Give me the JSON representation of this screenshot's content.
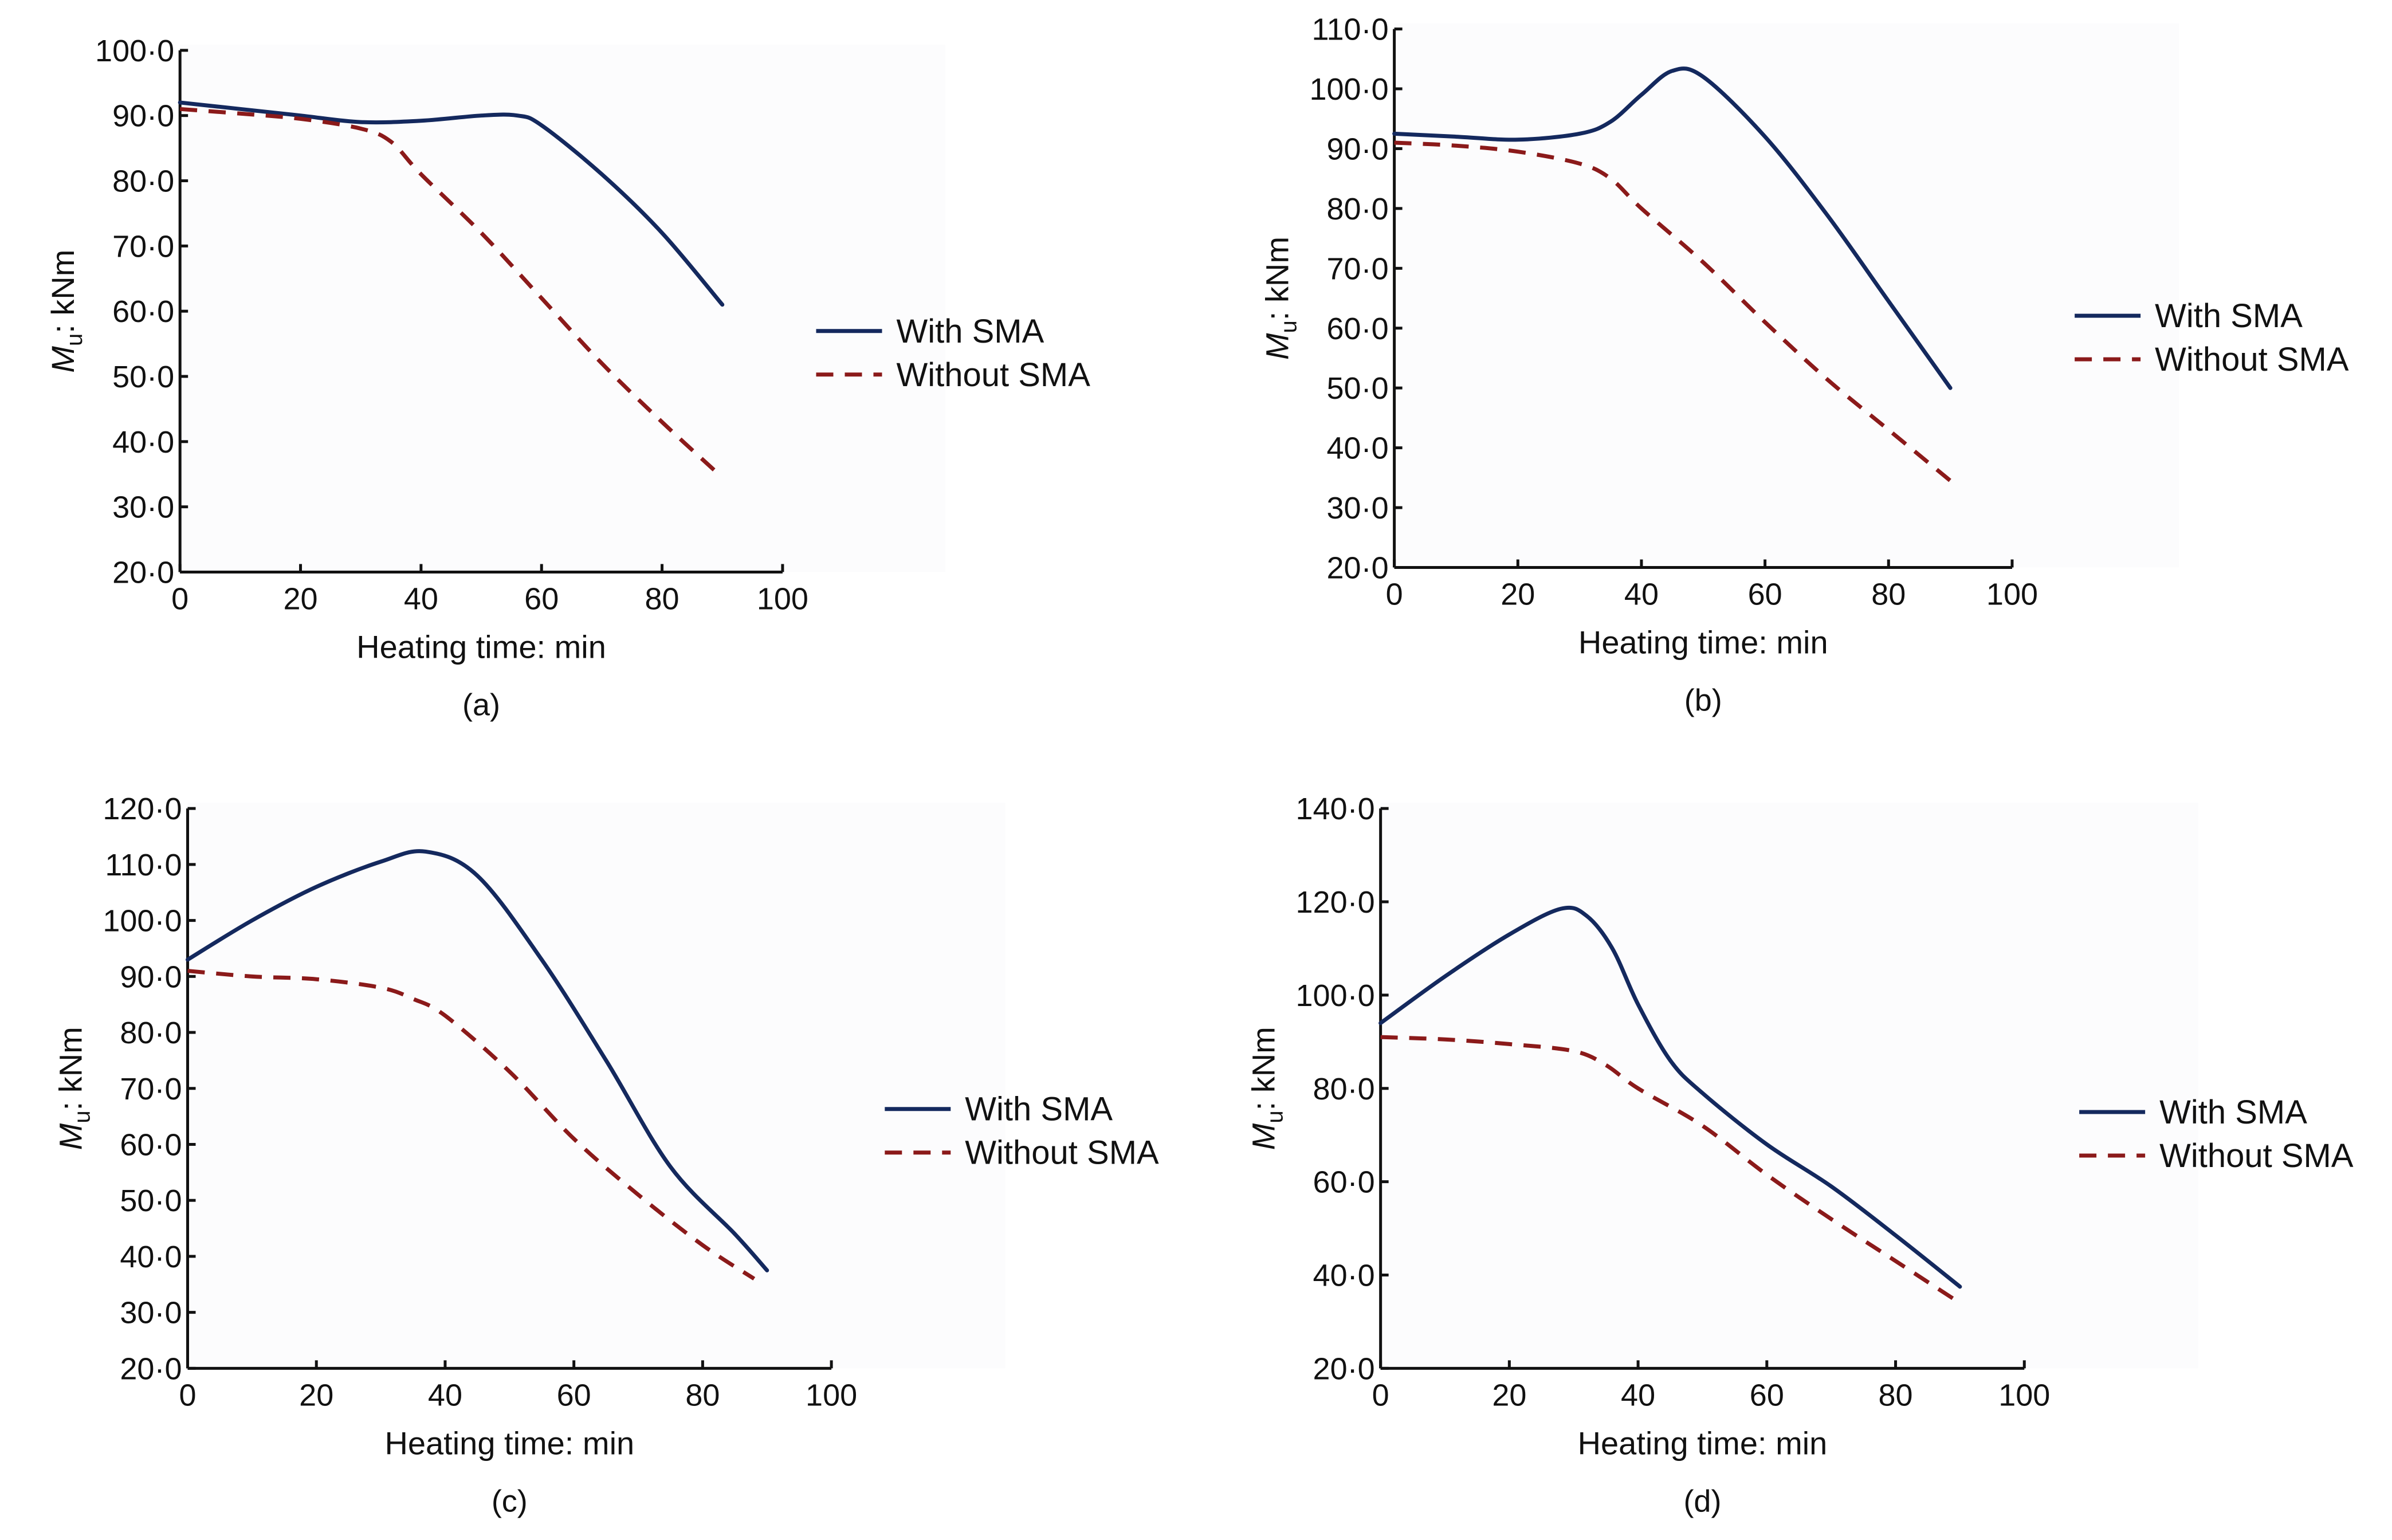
{
  "colors": {
    "with_sma": "#14295e",
    "without_sma": "#8b1a1a",
    "axis": "#111111"
  },
  "chart_data": [
    {
      "type": "line",
      "caption": "(a)",
      "xlabel": "Heating time: min",
      "ylabel": {
        "var": "M",
        "sub": "u",
        "unit": ": kNm"
      },
      "xlim": [
        0,
        100
      ],
      "ylim": [
        20,
        100
      ],
      "xticks": [
        "0",
        "20",
        "40",
        "60",
        "80",
        "100"
      ],
      "yticks": [
        "20·0",
        "30·0",
        "40·0",
        "50·0",
        "60·0",
        "70·0",
        "80·0",
        "90·0",
        "100·0"
      ],
      "legend": {
        "placement": "right",
        "entries": [
          "With SMA",
          "Without SMA"
        ]
      },
      "series": [
        {
          "name": "With SMA",
          "style": "solid",
          "x": [
            0,
            10,
            20,
            30,
            40,
            50,
            56,
            60,
            70,
            80,
            90
          ],
          "y": [
            92,
            91,
            90,
            89,
            89.2,
            90,
            90,
            88.5,
            81,
            72,
            61
          ]
        },
        {
          "name": "Without SMA",
          "style": "dashed",
          "x": [
            0,
            10,
            20,
            30,
            35,
            40,
            50,
            60,
            70,
            80,
            90
          ],
          "y": [
            91,
            90.3,
            89.5,
            88,
            86,
            81,
            72,
            62,
            52,
            43,
            34.5
          ]
        }
      ]
    },
    {
      "type": "line",
      "caption": "(b)",
      "xlabel": "Heating time: min",
      "ylabel": {
        "var": "M",
        "sub": "u",
        "unit": ": kNm"
      },
      "xlim": [
        0,
        100
      ],
      "ylim": [
        20,
        110
      ],
      "xticks": [
        "0",
        "20",
        "40",
        "60",
        "80",
        "100"
      ],
      "yticks": [
        "20·0",
        "30·0",
        "40·0",
        "50·0",
        "60·0",
        "70·0",
        "80·0",
        "90·0",
        "100·0",
        "110·0"
      ],
      "legend": {
        "placement": "right",
        "entries": [
          "With SMA",
          "Without SMA"
        ]
      },
      "series": [
        {
          "name": "With SMA",
          "style": "solid",
          "x": [
            0,
            10,
            20,
            30,
            35,
            40,
            45,
            50,
            60,
            70,
            80,
            90
          ],
          "y": [
            92.5,
            92,
            91.5,
            92.5,
            94.5,
            99,
            103,
            102,
            92,
            79,
            64.5,
            50
          ]
        },
        {
          "name": "Without SMA",
          "style": "dashed",
          "x": [
            0,
            10,
            20,
            30,
            35,
            40,
            50,
            60,
            70,
            80,
            90
          ],
          "y": [
            91,
            90.5,
            89.5,
            87.5,
            85,
            80,
            71,
            61,
            51.5,
            43,
            34.5
          ]
        }
      ]
    },
    {
      "type": "line",
      "caption": "(c)",
      "xlabel": "Heating time: min",
      "ylabel": {
        "var": "M",
        "sub": "u",
        "unit": ": kNm"
      },
      "xlim": [
        0,
        100
      ],
      "ylim": [
        20,
        120
      ],
      "xticks": [
        "0",
        "20",
        "40",
        "60",
        "80",
        "100"
      ],
      "yticks": [
        "20·0",
        "30·0",
        "40·0",
        "50·0",
        "60·0",
        "70·0",
        "80·0",
        "90·0",
        "100·0",
        "110·0",
        "120·0"
      ],
      "legend": {
        "placement": "right",
        "entries": [
          "With SMA",
          "Without SMA"
        ]
      },
      "series": [
        {
          "name": "With SMA",
          "style": "solid",
          "x": [
            0,
            10,
            20,
            30,
            37,
            45,
            55,
            65,
            75,
            85,
            90
          ],
          "y": [
            93,
            100,
            106,
            110.5,
            112.3,
            108,
            93,
            75,
            56,
            44,
            37.5
          ]
        },
        {
          "name": "Without SMA",
          "style": "dashed",
          "x": [
            0,
            10,
            20,
            30,
            35,
            40,
            50,
            60,
            70,
            80,
            88
          ],
          "y": [
            91,
            90,
            89.5,
            88,
            86,
            83,
            73,
            61,
            51,
            42,
            36
          ]
        }
      ]
    },
    {
      "type": "line",
      "caption": "(d)",
      "xlabel": "Heating time: min",
      "ylabel": {
        "var": "M",
        "sub": "u",
        "unit": ": kNm"
      },
      "xlim": [
        0,
        100
      ],
      "ylim": [
        20,
        140
      ],
      "xticks": [
        "0",
        "20",
        "40",
        "60",
        "80",
        "100"
      ],
      "yticks": [
        "20·0",
        "40·0",
        "60·0",
        "80·0",
        "100·0",
        "120·0",
        "140·0"
      ],
      "legend": {
        "placement": "right",
        "entries": [
          "With SMA",
          "Without SMA"
        ]
      },
      "series": [
        {
          "name": "With SMA",
          "style": "solid",
          "x": [
            0,
            10,
            20,
            28,
            32,
            36,
            40,
            45,
            50,
            60,
            70,
            80,
            90
          ],
          "y": [
            94,
            104,
            113,
            118.5,
            117,
            110,
            98,
            86,
            79,
            68,
            59,
            48.5,
            37.5
          ]
        },
        {
          "name": "Without SMA",
          "style": "dashed",
          "x": [
            0,
            10,
            20,
            30,
            35,
            40,
            50,
            60,
            70,
            80,
            90
          ],
          "y": [
            91,
            90.5,
            89.5,
            88,
            85,
            80,
            72,
            61.5,
            52,
            43,
            34
          ]
        }
      ]
    }
  ]
}
